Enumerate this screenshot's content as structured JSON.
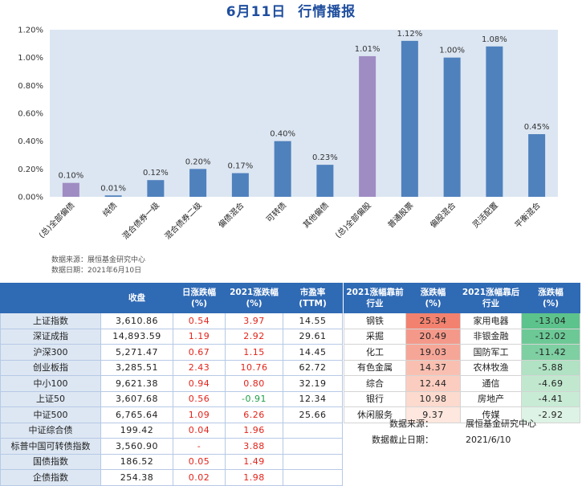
{
  "title": "6月11日 行情播报",
  "colors": {
    "header_bg": "#2F6AB5",
    "up": "#E2231A",
    "down": "#1E9E47",
    "name_cell_bg": "#DDE7F3"
  },
  "chart_data": {
    "type": "bar",
    "categories": [
      "(总)全部偏债",
      "纯债",
      "混合债券一级",
      "混合债券二级",
      "偏债混合",
      "可转债",
      "其他偏债",
      "(总)全部偏股",
      "普通股票",
      "偏股混合",
      "灵活配置",
      "平衡混合"
    ],
    "values": [
      0.1,
      0.01,
      0.12,
      0.2,
      0.17,
      0.4,
      0.23,
      1.01,
      1.12,
      1.0,
      1.08,
      0.45
    ],
    "value_labels": [
      "0.10%",
      "0.01%",
      "0.12%",
      "0.20%",
      "0.17%",
      "0.40%",
      "0.23%",
      "1.01%",
      "1.12%",
      "1.00%",
      "1.08%",
      "0.45%"
    ],
    "ylim": [
      0,
      1.2
    ],
    "y_ticks": [
      0,
      0.2,
      0.4,
      0.6,
      0.8,
      1.0,
      1.2
    ],
    "y_tick_labels": [
      "0.00%",
      "0.20%",
      "0.40%",
      "0.60%",
      "0.80%",
      "1.00%",
      "1.20%"
    ],
    "highlight_categories": [
      "(总)全部偏债",
      "(总)全部偏股"
    ],
    "grid": false,
    "legend": "none",
    "colors": {
      "bar": "#4F81BD",
      "highlight": "#9F8CC3",
      "plot_bg": "#DCE6F2"
    }
  },
  "chart_notes": {
    "source": "数据来源：展恒基金研究中心",
    "date": "数据日期：2021年6月10日"
  },
  "index_table": {
    "headers": {
      "close": "收盘",
      "day_chg": [
        "日涨跌幅",
        "(%)"
      ],
      "ytd_chg": [
        "2021涨跌幅",
        "(%)"
      ],
      "pe": [
        "市盈率",
        "(TTM)"
      ]
    },
    "rows": [
      {
        "name": "上证指数",
        "close": "3,610.86",
        "day_chg": "0.54",
        "ytd_chg": "3.97",
        "pe": "14.55"
      },
      {
        "name": "深证成指",
        "close": "14,893.59",
        "day_chg": "1.19",
        "ytd_chg": "2.92",
        "pe": "29.61"
      },
      {
        "name": "沪深300",
        "close": "5,271.47",
        "day_chg": "0.67",
        "ytd_chg": "1.15",
        "pe": "14.45"
      },
      {
        "name": "创业板指",
        "close": "3,285.51",
        "day_chg": "2.43",
        "ytd_chg": "10.76",
        "pe": "62.72"
      },
      {
        "name": "中小100",
        "close": "9,621.38",
        "day_chg": "0.94",
        "ytd_chg": "0.80",
        "pe": "32.19"
      },
      {
        "name": "上证50",
        "close": "3,607.68",
        "day_chg": "0.56",
        "ytd_chg": "-0.91",
        "pe": "12.34"
      },
      {
        "name": "中证500",
        "close": "6,765.64",
        "day_chg": "1.09",
        "ytd_chg": "6.26",
        "pe": "25.66"
      },
      {
        "name": "中证综合债",
        "close": "199.42",
        "day_chg": "0.04",
        "ytd_chg": "1.96",
        "pe": ""
      },
      {
        "name": "标普中国可转债指数",
        "close": "3,560.90",
        "day_chg": "-",
        "ytd_chg": "3.88",
        "pe": ""
      },
      {
        "name": "国债指数",
        "close": "186.52",
        "day_chg": "0.05",
        "ytd_chg": "1.49",
        "pe": ""
      },
      {
        "name": "企债指数",
        "close": "254.38",
        "day_chg": "0.02",
        "ytd_chg": "1.98",
        "pe": ""
      }
    ]
  },
  "industry_table": {
    "headers": {
      "top_name": [
        "2021涨幅靠前",
        "行业"
      ],
      "top_chg": [
        "涨跌幅",
        "(%)"
      ],
      "bottom_name": [
        "2021涨幅靠后",
        "行业"
      ],
      "bottom_chg": [
        "涨跌幅",
        "(%)"
      ]
    },
    "rows": [
      {
        "top_name": "钢铁",
        "top_chg": "25.34",
        "top_bg": "#F2826F",
        "bottom_name": "家用电器",
        "bottom_chg": "-13.04",
        "bottom_bg": "#5DC38C"
      },
      {
        "top_name": "采掘",
        "top_chg": "20.49",
        "top_bg": "#F4998A",
        "bottom_name": "非银金融",
        "bottom_chg": "-12.02",
        "bottom_bg": "#6CC996"
      },
      {
        "top_name": "化工",
        "top_chg": "19.03",
        "top_bg": "#F6A697",
        "bottom_name": "国防军工",
        "bottom_chg": "-11.42",
        "bottom_bg": "#7ECFA2"
      },
      {
        "top_name": "有色金属",
        "top_chg": "14.37",
        "top_bg": "#F9C0B2",
        "bottom_name": "农林牧渔",
        "bottom_chg": "-5.88",
        "bottom_bg": "#B0E2C3"
      },
      {
        "top_name": "综合",
        "top_chg": "12.44",
        "top_bg": "#FBCDC0",
        "bottom_name": "通信",
        "bottom_chg": "-4.69",
        "bottom_bg": "#C1E8CF"
      },
      {
        "top_name": "银行",
        "top_chg": "10.98",
        "top_bg": "#FCDACE",
        "bottom_name": "房地产",
        "bottom_chg": "-4.41",
        "bottom_bg": "#C8EBD5"
      },
      {
        "top_name": "休闲服务",
        "top_chg": "9.37",
        "top_bg": "#FDE7DE",
        "bottom_name": "传媒",
        "bottom_chg": "-2.92",
        "bottom_bg": "#DDF3E5"
      }
    ]
  },
  "table_notes": {
    "source_label": "数据来源：",
    "source_value": "展恒基金研究中心",
    "date_label": "数据截止日期：",
    "date_value": "2021/6/10"
  }
}
